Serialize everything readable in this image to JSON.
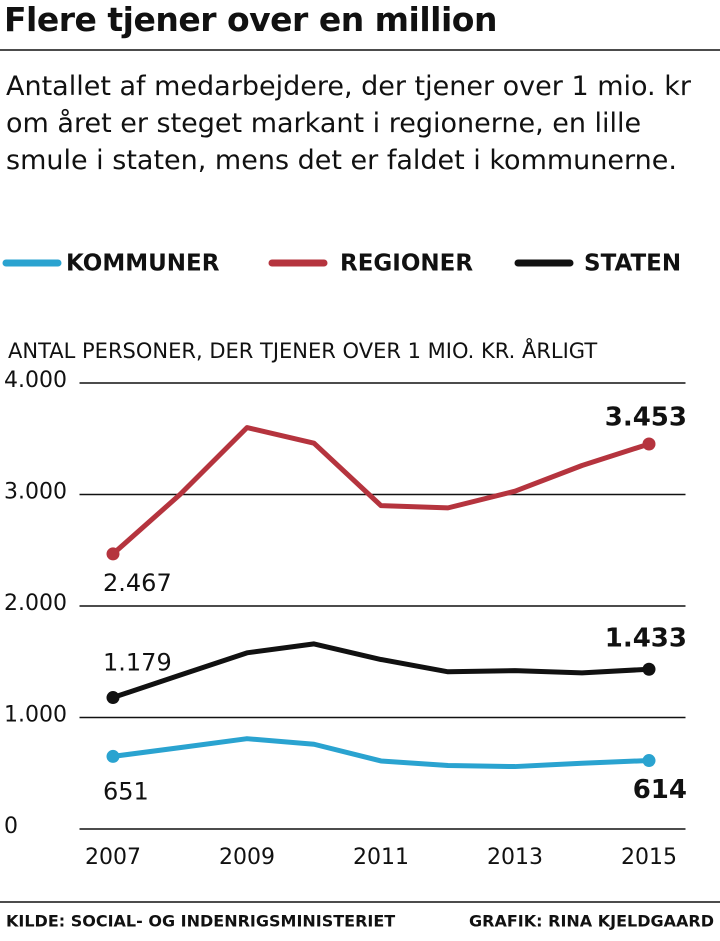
{
  "chart_data": {
    "type": "line",
    "title": "Flere tjener over en million",
    "subtitle": "Antallet af medarbejdere, der tjener over 1 mio. kr om året er steget markant i regionerne, en lille smule i staten, mens det er faldet i kommunerne.",
    "y_label": "ANTAL PERSONER, DER TJENER OVER 1 MIO. KR. ÅRLIGT",
    "x": [
      2007,
      2008,
      2009,
      2010,
      2011,
      2012,
      2013,
      2014,
      2015
    ],
    "xlim": [
      2006.5,
      2015.5
    ],
    "xticks": [
      2007,
      2009,
      2011,
      2013,
      2015
    ],
    "ylim": [
      0,
      4000
    ],
    "yticks": [
      0,
      {
        "value": 1000,
        "label": "1.000"
      },
      {
        "value": 2000,
        "label": "2.000"
      },
      {
        "value": 3000,
        "label": "3.000"
      },
      {
        "value": 4000,
        "label": "4.000"
      }
    ],
    "grid": true,
    "series": [
      {
        "name": "KOMMUNER",
        "color": "#2aa3d0",
        "values": [
          651,
          730,
          810,
          760,
          610,
          570,
          560,
          590,
          614
        ]
      },
      {
        "name": "REGIONER",
        "color": "#b5343e",
        "values": [
          2467,
          3000,
          3600,
          3460,
          2900,
          2880,
          3030,
          3260,
          3453
        ],
        "value_labels": [
          "2.467",
          null,
          null,
          null,
          null,
          null,
          null,
          null,
          "3.453"
        ]
      },
      {
        "name": "STATEN",
        "color": "#111111",
        "values": [
          1179,
          1380,
          1580,
          1660,
          1520,
          1410,
          1420,
          1400,
          1433
        ],
        "value_labels": [
          "1.179",
          null,
          null,
          null,
          null,
          null,
          null,
          null,
          "1.433"
        ]
      }
    ],
    "source": "KILDE: SOCIAL- OG INDENRIGSMINISTERIET",
    "credit": "GRAFIK: RINA KJELDGAARD"
  }
}
